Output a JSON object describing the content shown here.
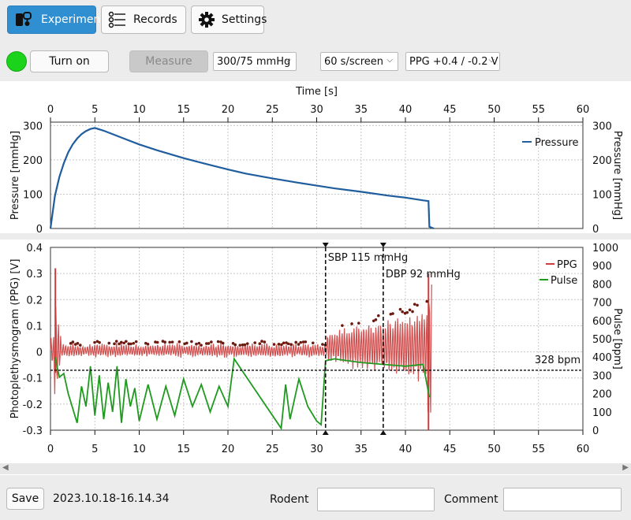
{
  "tabs": [
    {
      "label": "Experiment",
      "icon": "device-icon",
      "active": true
    },
    {
      "label": "Records",
      "icon": "records-icon",
      "active": false
    },
    {
      "label": "Settings",
      "icon": "gear-icon",
      "active": false
    }
  ],
  "controls": {
    "led_color": "#1ad31a",
    "turn_on_label": "Turn on",
    "measure_label": "Measure",
    "range_select": "300/75 mmHg",
    "speed_select": "60 s/screen",
    "ppg_select": "PPG +0.4 / -0.2 V"
  },
  "chart_data": [
    {
      "type": "line",
      "xlabel": "Time [s]",
      "ylabel": "Pressure [mmHg]",
      "ylabel_right": "Pressure [mmHg]",
      "xlim": [
        0,
        60
      ],
      "ylim": [
        0,
        310
      ],
      "x_ticks": [
        0,
        5,
        10,
        15,
        20,
        25,
        30,
        35,
        40,
        45,
        50,
        55,
        60
      ],
      "y_ticks": [
        0,
        100,
        200,
        300
      ],
      "grid": true,
      "legend": "top-right",
      "series": [
        {
          "name": "Pressure",
          "color": "#1f5d9e",
          "x": [
            0,
            0.5,
            1,
            1.5,
            2,
            2.5,
            3,
            3.5,
            4,
            4.5,
            5,
            6,
            8,
            10,
            12,
            15,
            18,
            20,
            22,
            25,
            28,
            30,
            32,
            35,
            38,
            40,
            42,
            42.6,
            42.7,
            43.2
          ],
          "y": [
            0,
            95,
            150,
            190,
            222,
            245,
            262,
            275,
            284,
            290,
            293,
            285,
            265,
            245,
            228,
            205,
            185,
            172,
            160,
            146,
            133,
            125,
            117,
            107,
            96,
            90,
            82,
            80,
            5,
            0
          ]
        }
      ]
    },
    {
      "type": "line",
      "xlabel": "",
      "ylabel": "Photoplethysmogram (PPG) [V]",
      "ylabel_right": "Pulse [bpm]",
      "xlim": [
        0,
        60
      ],
      "ylim": [
        -0.3,
        0.4
      ],
      "ylim_right": [
        0,
        1000
      ],
      "x_ticks": [
        0,
        5,
        10,
        15,
        20,
        25,
        30,
        35,
        40,
        45,
        50,
        55,
        60
      ],
      "y_ticks": [
        -0.3,
        -0.2,
        -0.1,
        0,
        0.1,
        0.2,
        0.3,
        0.4
      ],
      "y_ticks_right": [
        0,
        100,
        200,
        300,
        400,
        500,
        600,
        700,
        800,
        900,
        1000
      ],
      "grid": true,
      "legend": "top-right",
      "series": [
        {
          "name": "PPG",
          "color": "#cc3d3d"
        },
        {
          "name": "Pulse",
          "color": "#1f9a1f",
          "x": [
            0.5,
            1,
            1.5,
            2,
            3,
            3.5,
            4,
            4.5,
            5,
            5.5,
            6,
            6.5,
            7,
            7.5,
            8,
            8.5,
            9,
            9.5,
            10,
            11,
            12,
            13,
            14,
            15,
            16,
            17,
            18,
            19,
            20,
            20.7,
            26,
            26.5,
            27,
            28,
            29,
            30,
            30.5,
            31,
            32,
            35,
            37.5,
            40,
            42,
            42.7
          ],
          "y": [
            400,
            290,
            310,
            200,
            40,
            240,
            130,
            350,
            80,
            300,
            60,
            260,
            100,
            350,
            40,
            280,
            130,
            230,
            50,
            250,
            60,
            240,
            80,
            280,
            130,
            250,
            100,
            240,
            130,
            390,
            10,
            250,
            60,
            280,
            130,
            50,
            30,
            380,
            390,
            370,
            360,
            350,
            360,
            180
          ]
        }
      ],
      "annotations": [
        {
          "label": "SBP 115 mmHg",
          "x": 31
        },
        {
          "label": "DBP 92 mmHg",
          "x": 37.5
        },
        {
          "label": "328 bpm",
          "y_right": 328
        }
      ]
    }
  ],
  "footer": {
    "save_label": "Save",
    "timestamp": "2023.10.18-16.14.34",
    "rodent_label": "Rodent",
    "rodent_value": "",
    "comment_label": "Comment",
    "comment_value": ""
  }
}
